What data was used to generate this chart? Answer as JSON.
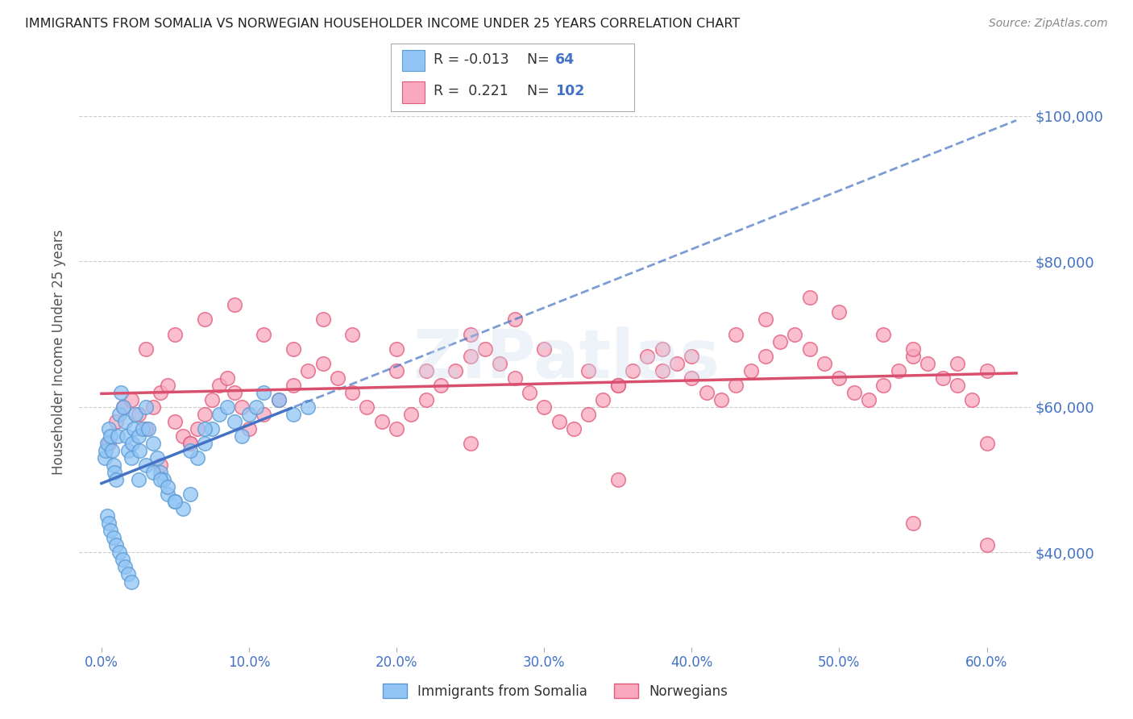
{
  "title": "IMMIGRANTS FROM SOMALIA VS NORWEGIAN HOUSEHOLDER INCOME UNDER 25 YEARS CORRELATION CHART",
  "source": "Source: ZipAtlas.com",
  "ylabel": "Householder Income Under 25 years",
  "xlabel_ticks": [
    "0.0%",
    "10.0%",
    "20.0%",
    "30.0%",
    "40.0%",
    "50.0%",
    "60.0%"
  ],
  "xlabel_vals": [
    0.0,
    10.0,
    20.0,
    30.0,
    40.0,
    50.0,
    60.0
  ],
  "ytick_labels": [
    "$40,000",
    "$60,000",
    "$80,000",
    "$100,000"
  ],
  "ytick_vals": [
    40000,
    60000,
    80000,
    100000
  ],
  "xlim": [
    -1.5,
    63
  ],
  "ylim": [
    27000,
    108000
  ],
  "somalia_R": "-0.013",
  "somalia_N": "64",
  "norway_R": "0.221",
  "norway_N": "102",
  "somalia_color": "#92C5F5",
  "somalia_edge_color": "#5B9BD5",
  "norway_color": "#F9A8C0",
  "norway_edge_color": "#E05A7A",
  "somalia_line_color": "#4472C4",
  "norway_line_color": "#D94F6E",
  "grid_color": "#CCCCCC",
  "background_color": "#FFFFFF",
  "title_color": "#222222",
  "axis_label_color": "#555555",
  "tick_label_color": "#4472C4",
  "source_color": "#888888",
  "legend_label_somalia": "Immigrants from Somalia",
  "legend_label_norway": "Norwegians",
  "somalia_x": [
    0.2,
    0.3,
    0.4,
    0.5,
    0.6,
    0.7,
    0.8,
    0.9,
    1.0,
    1.1,
    1.2,
    1.3,
    1.5,
    1.6,
    1.7,
    1.8,
    2.0,
    2.1,
    2.2,
    2.3,
    2.5,
    2.6,
    2.8,
    3.0,
    3.2,
    3.5,
    3.8,
    4.0,
    4.2,
    4.5,
    5.0,
    5.5,
    6.0,
    6.5,
    7.0,
    7.5,
    8.0,
    8.5,
    9.0,
    9.5,
    10.0,
    10.5,
    11.0,
    12.0,
    13.0,
    14.0,
    0.4,
    0.5,
    0.6,
    0.8,
    1.0,
    1.2,
    1.4,
    1.6,
    1.8,
    2.0,
    2.5,
    3.0,
    3.5,
    4.0,
    4.5,
    5.0,
    6.0,
    7.0
  ],
  "somalia_y": [
    53000,
    54000,
    55000,
    57000,
    56000,
    54000,
    52000,
    51000,
    50000,
    56000,
    59000,
    62000,
    60000,
    58000,
    56000,
    54000,
    53000,
    55000,
    57000,
    59000,
    56000,
    54000,
    57000,
    60000,
    57000,
    55000,
    53000,
    51000,
    50000,
    48000,
    47000,
    46000,
    48000,
    53000,
    55000,
    57000,
    59000,
    60000,
    58000,
    56000,
    59000,
    60000,
    62000,
    61000,
    59000,
    60000,
    45000,
    44000,
    43000,
    42000,
    41000,
    40000,
    39000,
    38000,
    37000,
    36000,
    50000,
    52000,
    51000,
    50000,
    49000,
    47000,
    54000,
    57000
  ],
  "norway_x": [
    0.5,
    1.0,
    1.5,
    2.0,
    2.5,
    3.0,
    3.5,
    4.0,
    4.5,
    5.0,
    5.5,
    6.0,
    6.5,
    7.0,
    7.5,
    8.0,
    8.5,
    9.0,
    9.5,
    10.0,
    11.0,
    12.0,
    13.0,
    14.0,
    15.0,
    16.0,
    17.0,
    18.0,
    19.0,
    20.0,
    21.0,
    22.0,
    23.0,
    24.0,
    25.0,
    26.0,
    27.0,
    28.0,
    29.0,
    30.0,
    31.0,
    32.0,
    33.0,
    34.0,
    35.0,
    36.0,
    37.0,
    38.0,
    39.0,
    40.0,
    41.0,
    42.0,
    43.0,
    44.0,
    45.0,
    46.0,
    47.0,
    48.0,
    49.0,
    50.0,
    51.0,
    52.0,
    53.0,
    54.0,
    55.0,
    56.0,
    57.0,
    58.0,
    59.0,
    60.0,
    3.0,
    5.0,
    7.0,
    9.0,
    11.0,
    13.0,
    15.0,
    17.0,
    20.0,
    22.0,
    25.0,
    28.0,
    30.0,
    33.0,
    35.0,
    38.0,
    40.0,
    43.0,
    45.0,
    48.0,
    50.0,
    53.0,
    55.0,
    58.0,
    60.0,
    4.0,
    6.0,
    25.0,
    35.0,
    55.0,
    60.0,
    20.0
  ],
  "norway_y": [
    55000,
    58000,
    60000,
    61000,
    59000,
    57000,
    60000,
    62000,
    63000,
    58000,
    56000,
    55000,
    57000,
    59000,
    61000,
    63000,
    64000,
    62000,
    60000,
    57000,
    59000,
    61000,
    63000,
    65000,
    66000,
    64000,
    62000,
    60000,
    58000,
    57000,
    59000,
    61000,
    63000,
    65000,
    67000,
    68000,
    66000,
    64000,
    62000,
    60000,
    58000,
    57000,
    59000,
    61000,
    63000,
    65000,
    67000,
    68000,
    66000,
    64000,
    62000,
    61000,
    63000,
    65000,
    67000,
    69000,
    70000,
    68000,
    66000,
    64000,
    62000,
    61000,
    63000,
    65000,
    67000,
    66000,
    64000,
    63000,
    61000,
    55000,
    68000,
    70000,
    72000,
    74000,
    70000,
    68000,
    72000,
    70000,
    68000,
    65000,
    70000,
    72000,
    68000,
    65000,
    63000,
    65000,
    67000,
    70000,
    72000,
    75000,
    73000,
    70000,
    68000,
    66000,
    65000,
    52000,
    55000,
    55000,
    50000,
    44000,
    41000,
    65000
  ]
}
